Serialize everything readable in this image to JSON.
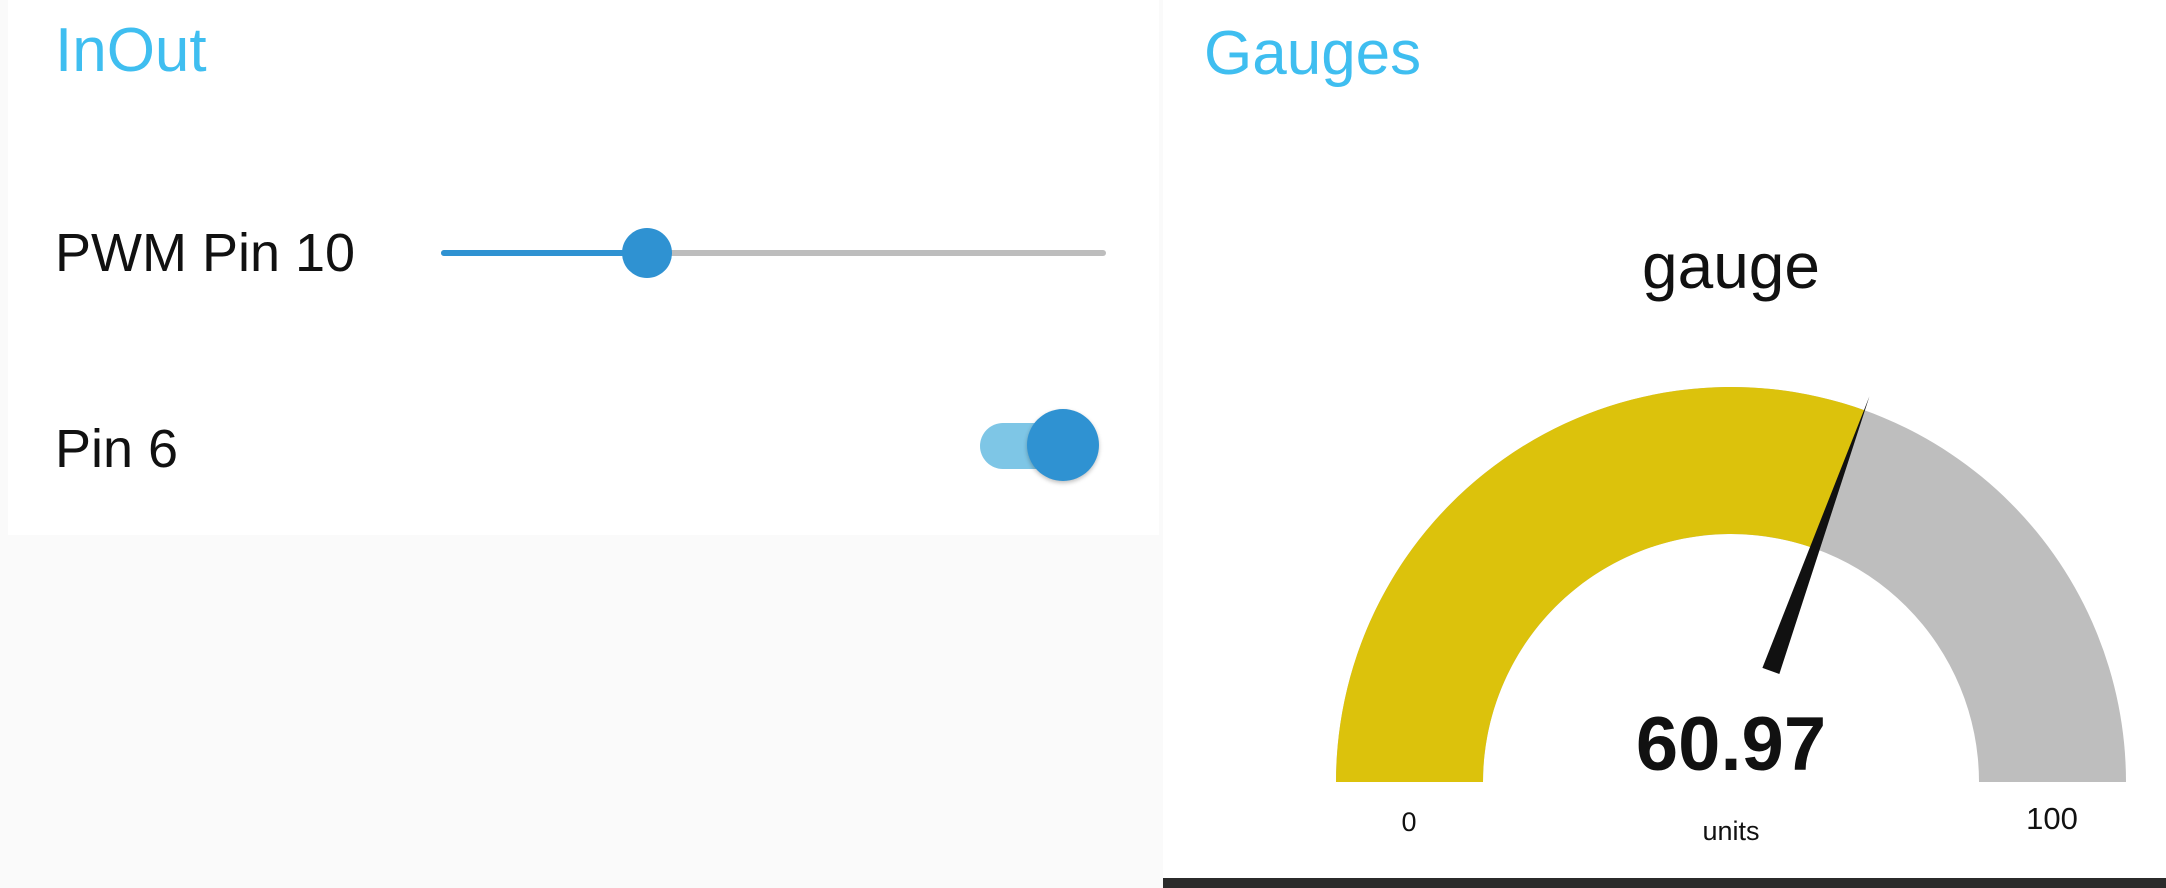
{
  "inout": {
    "title": "InOut",
    "slider": {
      "label": "PWM Pin 10",
      "fraction": 0.31
    },
    "toggle": {
      "label": "Pin 6",
      "on": true
    }
  },
  "gauges": {
    "title": "Gauges",
    "gauge": {
      "label": "gauge",
      "value_text": "60.97",
      "value": 60.97,
      "min": 0,
      "max": 100,
      "min_label": "0",
      "max_label": "100",
      "units": "units"
    }
  },
  "colors": {
    "title": "#3fbef0",
    "accent": "#2f92d2",
    "toggle_track": "#7ec6e6",
    "gauge_fill": "#dcc20c",
    "gauge_empty": "#bebebe",
    "needle": "#111111"
  }
}
